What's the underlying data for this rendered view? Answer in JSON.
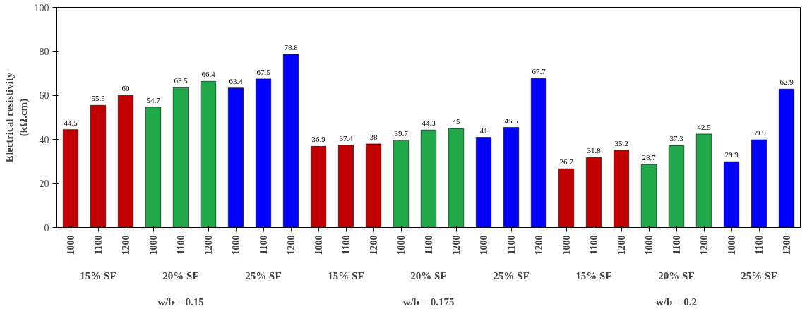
{
  "chart_data": {
    "type": "bar",
    "ylabel": "Electrical resistivity\n(kΩ.cm)",
    "categories": [
      "1000",
      "1100",
      "1200",
      "1000",
      "1100",
      "1200",
      "1000",
      "1100",
      "1200",
      "1000",
      "1100",
      "1200",
      "1000",
      "1100",
      "1200",
      "1000",
      "1100",
      "1200",
      "1000",
      "1100",
      "1200",
      "1000",
      "1100",
      "1200",
      "1000",
      "1100",
      "1200"
    ],
    "values": [
      44.5,
      55.5,
      60,
      54.7,
      63.5,
      66.4,
      63.4,
      67.5,
      78.8,
      36.9,
      37.4,
      38,
      39.7,
      44.3,
      45,
      41,
      45.5,
      67.7,
      26.7,
      31.8,
      35.2,
      28.7,
      37.3,
      42.5,
      29.9,
      39.9,
      62.9
    ],
    "colors": [
      "#c00000",
      "#c00000",
      "#c00000",
      "#20a84a",
      "#20a84a",
      "#20a84a",
      "#0000ff",
      "#0000ff",
      "#0000ff",
      "#c00000",
      "#c00000",
      "#c00000",
      "#20a84a",
      "#20a84a",
      "#20a84a",
      "#0000ff",
      "#0000ff",
      "#0000ff",
      "#c00000",
      "#c00000",
      "#c00000",
      "#20a84a",
      "#20a84a",
      "#20a84a",
      "#0000ff",
      "#0000ff",
      "#0000ff"
    ],
    "annotations": [
      "15% SF",
      "20% SF",
      "25% SF",
      "15% SF",
      "20% SF",
      "25% SF",
      "15% SF",
      "20% SF",
      "25% SF",
      "w/b = 0.15",
      "w/b = 0.175",
      "w/b = 0.2"
    ],
    "ylim": [
      0,
      100
    ],
    "yticks": [
      0,
      20,
      40,
      60,
      80,
      100
    ],
    "grid": false,
    "data_labels": true
  }
}
